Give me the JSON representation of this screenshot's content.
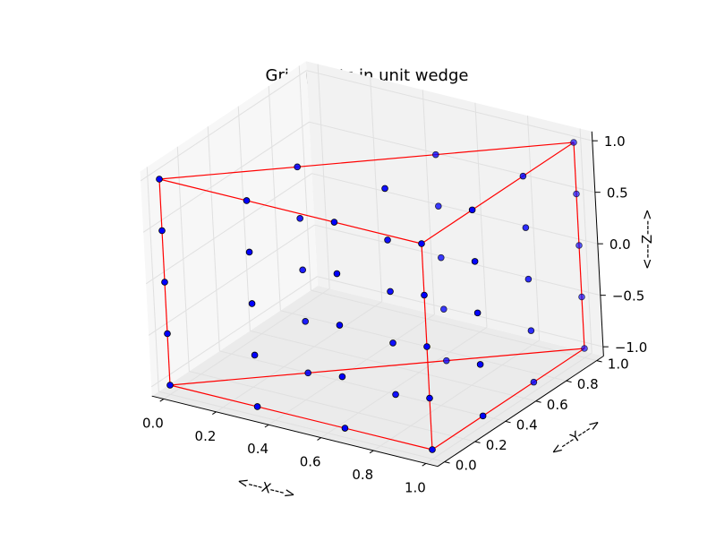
{
  "chart_data": {
    "type": "scatter",
    "projection": "3d",
    "title": "Grid points in unit wedge",
    "xlabel": "<---X--->",
    "ylabel": "<---Y--->",
    "zlabel": "<---Z--->",
    "xlim": [
      0.0,
      1.0
    ],
    "ylim": [
      0.0,
      1.0
    ],
    "zlim": [
      -1.0,
      1.0
    ],
    "xticks": [
      "0.0",
      "0.2",
      "0.4",
      "0.6",
      "0.8",
      "1.0"
    ],
    "yticks": [
      "0.0",
      "0.2",
      "0.4",
      "0.6",
      "0.8",
      "1.0"
    ],
    "zticks": [
      "−1.0",
      "−0.5",
      "0.0",
      "0.5",
      "1.0"
    ],
    "grid": true,
    "point_color": "#0000ff",
    "edge_color": "#ff0000",
    "points": [
      {
        "x": 0,
        "y": 0,
        "z": -1
      },
      {
        "x": 0,
        "y": 0,
        "z": -0.5
      },
      {
        "x": 0,
        "y": 0,
        "z": 0
      },
      {
        "x": 0,
        "y": 0,
        "z": 0.5
      },
      {
        "x": 0,
        "y": 0,
        "z": 1
      },
      {
        "x": 0.333,
        "y": 0,
        "z": -1
      },
      {
        "x": 0.333,
        "y": 0,
        "z": 1
      },
      {
        "x": 0.667,
        "y": 0,
        "z": -1
      },
      {
        "x": 0.667,
        "y": 0,
        "z": 1
      },
      {
        "x": 1,
        "y": 0,
        "z": -1
      },
      {
        "x": 1,
        "y": 0,
        "z": -0.5
      },
      {
        "x": 1,
        "y": 0,
        "z": 0
      },
      {
        "x": 1,
        "y": 0,
        "z": 0.5
      },
      {
        "x": 1,
        "y": 0,
        "z": 1
      },
      {
        "x": 0.333,
        "y": 0,
        "z": -0.5
      },
      {
        "x": 0.333,
        "y": 0,
        "z": 0
      },
      {
        "x": 0.333,
        "y": 0,
        "z": 0.5
      },
      {
        "x": 0.667,
        "y": 0,
        "z": -0.5
      },
      {
        "x": 0.667,
        "y": 0,
        "z": 0
      },
      {
        "x": 0.667,
        "y": 0,
        "z": 0.5
      },
      {
        "x": 1,
        "y": 0.333,
        "z": -1
      },
      {
        "x": 1,
        "y": 0.333,
        "z": 1
      },
      {
        "x": 1,
        "y": 0.333,
        "z": -0.5
      },
      {
        "x": 1,
        "y": 0.333,
        "z": 0
      },
      {
        "x": 1,
        "y": 0.333,
        "z": 0.5
      },
      {
        "x": 1,
        "y": 0.667,
        "z": -1
      },
      {
        "x": 1,
        "y": 0.667,
        "z": 1
      },
      {
        "x": 1,
        "y": 0.667,
        "z": -0.5
      },
      {
        "x": 1,
        "y": 0.667,
        "z": 0
      },
      {
        "x": 1,
        "y": 0.667,
        "z": 0.5
      },
      {
        "x": 1,
        "y": 1,
        "z": -1
      },
      {
        "x": 1,
        "y": 1,
        "z": -0.5
      },
      {
        "x": 1,
        "y": 1,
        "z": 0
      },
      {
        "x": 1,
        "y": 1,
        "z": 0.5
      },
      {
        "x": 1,
        "y": 1,
        "z": 1
      },
      {
        "x": 0.333,
        "y": 0.333,
        "z": -1
      },
      {
        "x": 0.333,
        "y": 0.333,
        "z": 1
      },
      {
        "x": 0.667,
        "y": 0.667,
        "z": -1
      },
      {
        "x": 0.667,
        "y": 0.667,
        "z": 1
      },
      {
        "x": 0.667,
        "y": 0.333,
        "z": -1
      },
      {
        "x": 0.667,
        "y": 0.333,
        "z": 1
      },
      {
        "x": 0.333,
        "y": 0.333,
        "z": -0.5
      },
      {
        "x": 0.333,
        "y": 0.333,
        "z": 0
      },
      {
        "x": 0.333,
        "y": 0.333,
        "z": 0.5
      },
      {
        "x": 0.667,
        "y": 0.667,
        "z": -0.5
      },
      {
        "x": 0.667,
        "y": 0.667,
        "z": 0
      },
      {
        "x": 0.667,
        "y": 0.667,
        "z": 0.5
      },
      {
        "x": 0.667,
        "y": 0.333,
        "z": -0.5
      },
      {
        "x": 0.667,
        "y": 0.333,
        "z": 0
      },
      {
        "x": 0.667,
        "y": 0.333,
        "z": 0.5
      }
    ]
  }
}
